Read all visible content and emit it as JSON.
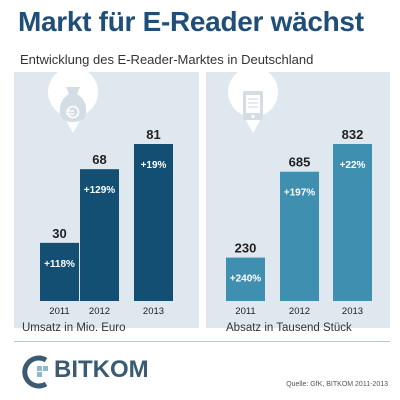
{
  "header": {
    "title": "Markt für E-Reader wächst",
    "subtitle": "Entwicklung des E-Reader-Marktes in Deutschland"
  },
  "colors": {
    "accent": "#1f4e79",
    "left_bars": "#134f72",
    "right_bars": "#3f90b0",
    "panel_bg": "#dfe8ef",
    "pin": "#ffffff"
  },
  "icons": {
    "left": "money-bag-euro-icon",
    "right": "e-reader-device-icon"
  },
  "chart_data": [
    {
      "type": "bar",
      "categories": [
        "2011",
        "2012",
        "2013"
      ],
      "values": [
        30,
        68,
        81
      ],
      "value_labels": [
        "30",
        "68",
        "81"
      ],
      "growth_labels": [
        "+118%",
        "+129%",
        "+19%"
      ],
      "caption": "Umsatz in Mio. Euro",
      "title": "",
      "xlabel": "",
      "ylabel": "",
      "ylim": [
        0,
        81
      ]
    },
    {
      "type": "bar",
      "categories": [
        "2011",
        "2012",
        "2013"
      ],
      "values": [
        230,
        685,
        832
      ],
      "value_labels": [
        "230",
        "685",
        "832"
      ],
      "growth_labels": [
        "+240%",
        "+197%",
        "+22%"
      ],
      "caption": "Absatz in Tausend Stück",
      "title": "",
      "xlabel": "",
      "ylabel": "",
      "ylim": [
        0,
        832
      ]
    }
  ],
  "footer": {
    "logo_text": "BITKOM",
    "source": "Quelle: GfK, BITKOM 2011-2013"
  }
}
